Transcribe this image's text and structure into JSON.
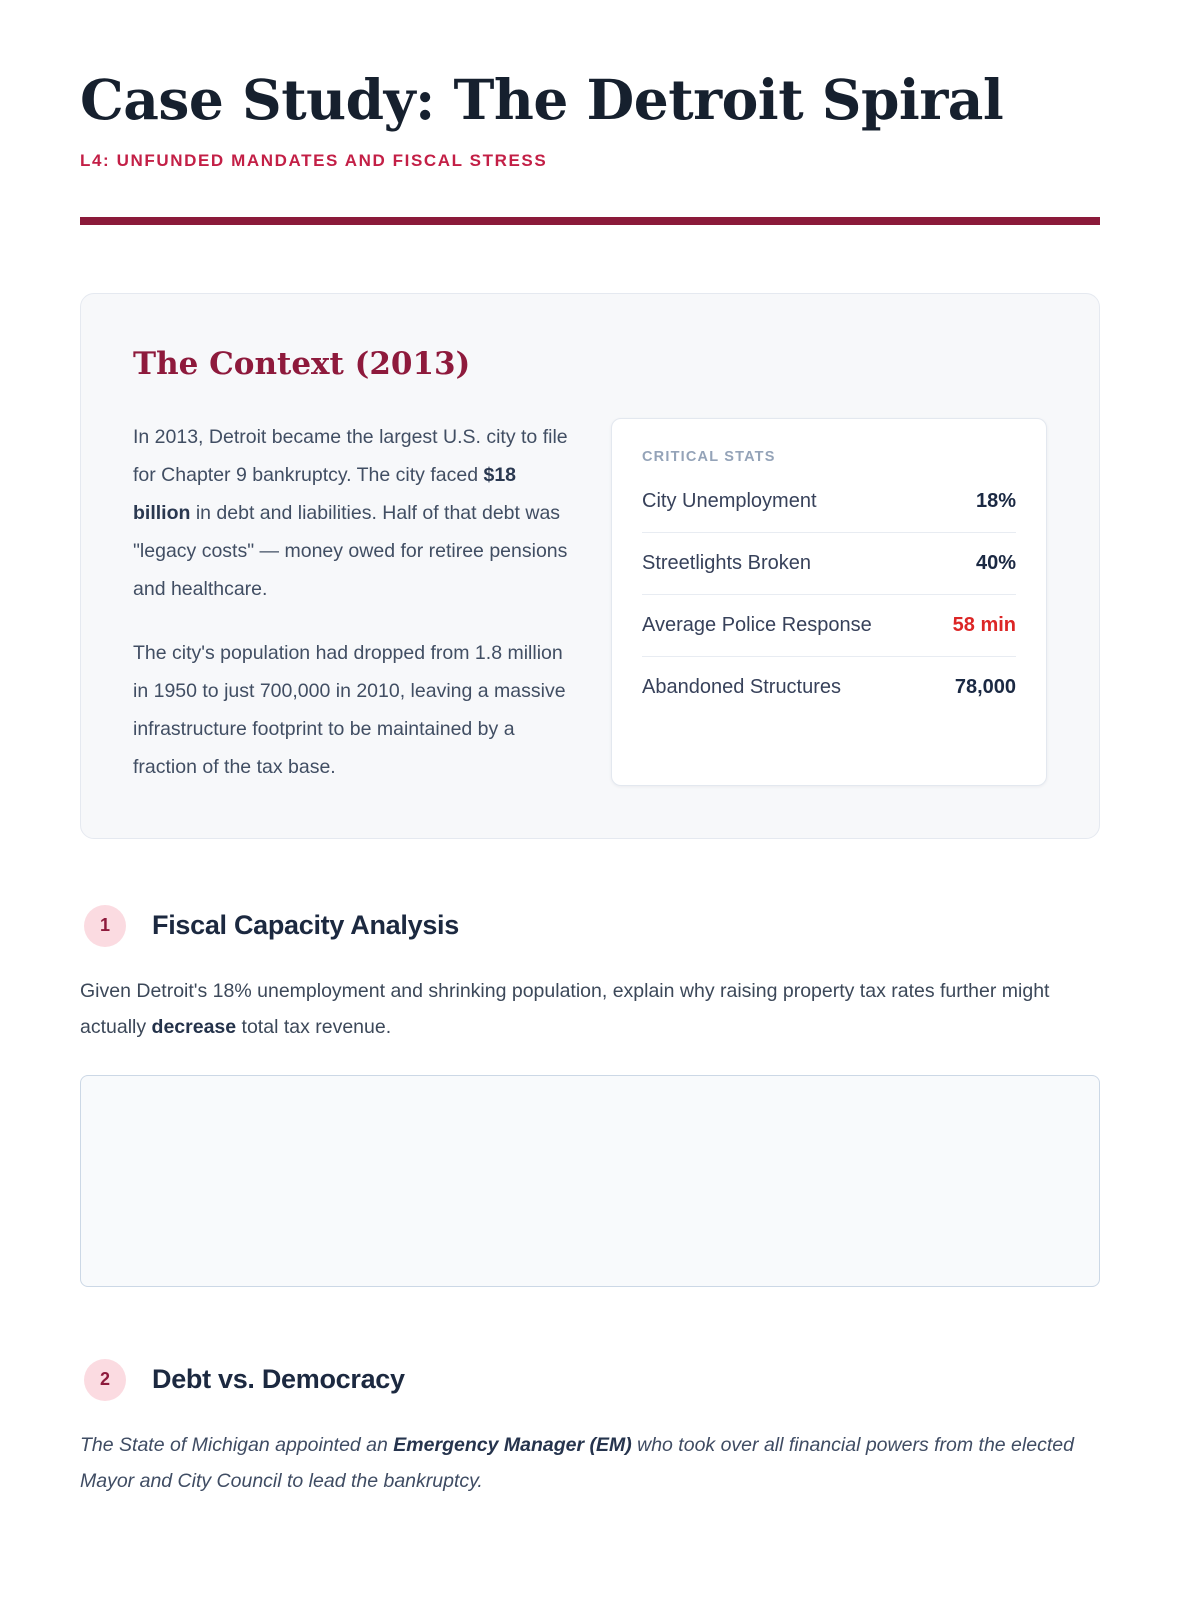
{
  "colors": {
    "accent_dark_crimson": "#8b1a3a",
    "accent_bright_crimson": "#c31f46",
    "heading_crimson": "#8e1a3c",
    "alert_red": "#dc2626",
    "navy_text": "#16202e",
    "muted_label": "#94a3b8",
    "badge_pink": "#fbdbe1"
  },
  "header": {
    "title": "Case Study: The Detroit Spiral",
    "subtitle": "L4: UNFUNDED MANDATES AND FISCAL STRESS"
  },
  "context": {
    "heading": "The Context (2013)",
    "para1": [
      {
        "t": "In 2013, Detroit became the largest U.S. city to file for Chapter 9 bankruptcy. The city faced "
      },
      {
        "t": "$18 billion",
        "b": true
      },
      {
        "t": " in debt and liabilities. Half of that debt was \"legacy costs\" — money owed for retiree pensions and healthcare."
      }
    ],
    "para2": [
      {
        "t": "The city's population had dropped from 1.8 million in 1950 to just 700,000 in 2010, leaving a massive infrastructure footprint to be maintained by a fraction of the tax base."
      }
    ]
  },
  "stats": {
    "heading": "CRITICAL STATS",
    "rows": [
      {
        "label": "City Unemployment",
        "value": "18%"
      },
      {
        "label": "Streetlights Broken",
        "value": "40%"
      },
      {
        "label": "Average Police Response",
        "value": "58 min"
      },
      {
        "label": "Abandoned Structures",
        "value": "78,000"
      }
    ]
  },
  "question1": {
    "number": "1",
    "heading": "Fiscal Capacity Analysis",
    "prompt": [
      {
        "t": "Given Detroit's 18% unemployment and shrinking population, explain why raising property tax rates further might actually "
      },
      {
        "t": "decrease",
        "b": true
      },
      {
        "t": " total tax revenue."
      }
    ],
    "answer_value": ""
  },
  "question2": {
    "number": "2",
    "heading": "Debt vs. Democracy",
    "note": [
      {
        "t": "The State of Michigan appointed an "
      },
      {
        "t": "Emergency Manager (EM)",
        "b": true
      },
      {
        "t": " who took over all financial powers from the elected Mayor and City Council to lead the bankruptcy."
      }
    ]
  }
}
